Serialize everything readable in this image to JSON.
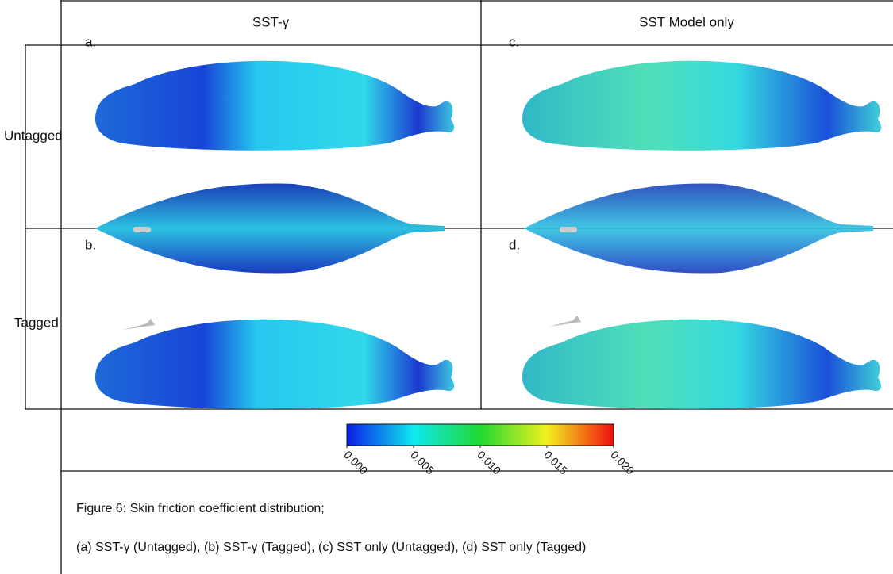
{
  "columns": [
    "SST-γ",
    "SST Model only"
  ],
  "rows": [
    "Untagged",
    "Tagged"
  ],
  "panels": [
    "a.",
    "c.",
    "b.",
    "d."
  ],
  "colorbar": {
    "lim": [
      0,
      0.02
    ],
    "ticks": [
      {
        "value": 0,
        "label": "0.000"
      },
      {
        "value": 0.005,
        "label": "0.005"
      },
      {
        "value": 0.01,
        "label": "0.010"
      },
      {
        "value": 0.015,
        "label": "0.015"
      },
      {
        "value": 0.02,
        "label": "0.020"
      }
    ],
    "colors": [
      "#0a1ee6",
      "#10e8f0",
      "#20d830",
      "#f2f020",
      "#f01010"
    ]
  },
  "caption": [
    "Figure 6: Skin friction coefficient distribution;",
    "(a) SST-γ (Untagged), (b) SST-γ (Tagged),  (c) SST only  (Untagged), (d) SST only (Tagged)"
  ]
}
